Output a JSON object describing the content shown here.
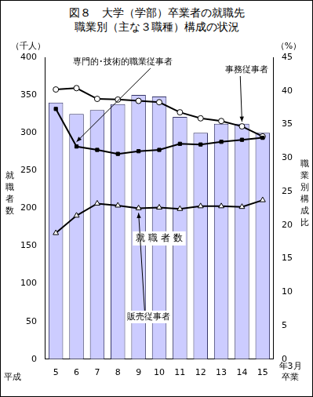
{
  "chart_data": {
    "type": "bar",
    "title": "図８　大学（学部）卒業者の就職先",
    "subtitle": "職業別（主な３職種）構成の状況",
    "y_label": "就職者数",
    "y_unit": "（千人）",
    "y2_label": "職業別構成比",
    "y2_unit": "（%）",
    "x_label_left": "平成",
    "x_label_right": "年3月卒業",
    "categories": [
      "5",
      "6",
      "7",
      "8",
      "9",
      "10",
      "11",
      "12",
      "13",
      "14",
      "15"
    ],
    "series": [
      {
        "name": "就 職 者 数",
        "type": "bar",
        "color": "#ccccff",
        "axis": "y",
        "values": [
          340,
          325,
          330,
          338,
          350,
          348,
          321,
          300,
          312,
          312,
          300
        ]
      },
      {
        "name": "専門的･技術的職業従事者",
        "type": "line",
        "color": "#000000",
        "axis": "y2",
        "marker": "square",
        "values": [
          37.3,
          31.7,
          31.2,
          30.6,
          31.0,
          31.2,
          32.1,
          32.0,
          32.4,
          32.7,
          33.0
        ]
      },
      {
        "name": "事務従事者",
        "type": "line",
        "color": "#000000",
        "axis": "y2",
        "marker": "circle_open",
        "values": [
          40.2,
          40.4,
          38.8,
          38.7,
          38.5,
          38.3,
          36.8,
          35.9,
          35.5,
          34.7,
          33.2
        ]
      },
      {
        "name": "販売従事者",
        "type": "line",
        "color": "#000000",
        "axis": "y2",
        "marker": "triangle_open",
        "values": [
          18.8,
          21.4,
          23.2,
          22.9,
          22.5,
          22.6,
          22.4,
          22.8,
          22.8,
          22.7,
          23.7
        ]
      }
    ],
    "ylim": [
      0,
      400
    ],
    "yticks": [
      0,
      50,
      100,
      150,
      200,
      250,
      300,
      350,
      400
    ],
    "y2lim": [
      0,
      45
    ],
    "y2ticks": [
      0,
      5,
      10,
      15,
      20,
      25,
      30,
      35,
      40,
      45
    ],
    "grid": false,
    "legend": "none"
  }
}
